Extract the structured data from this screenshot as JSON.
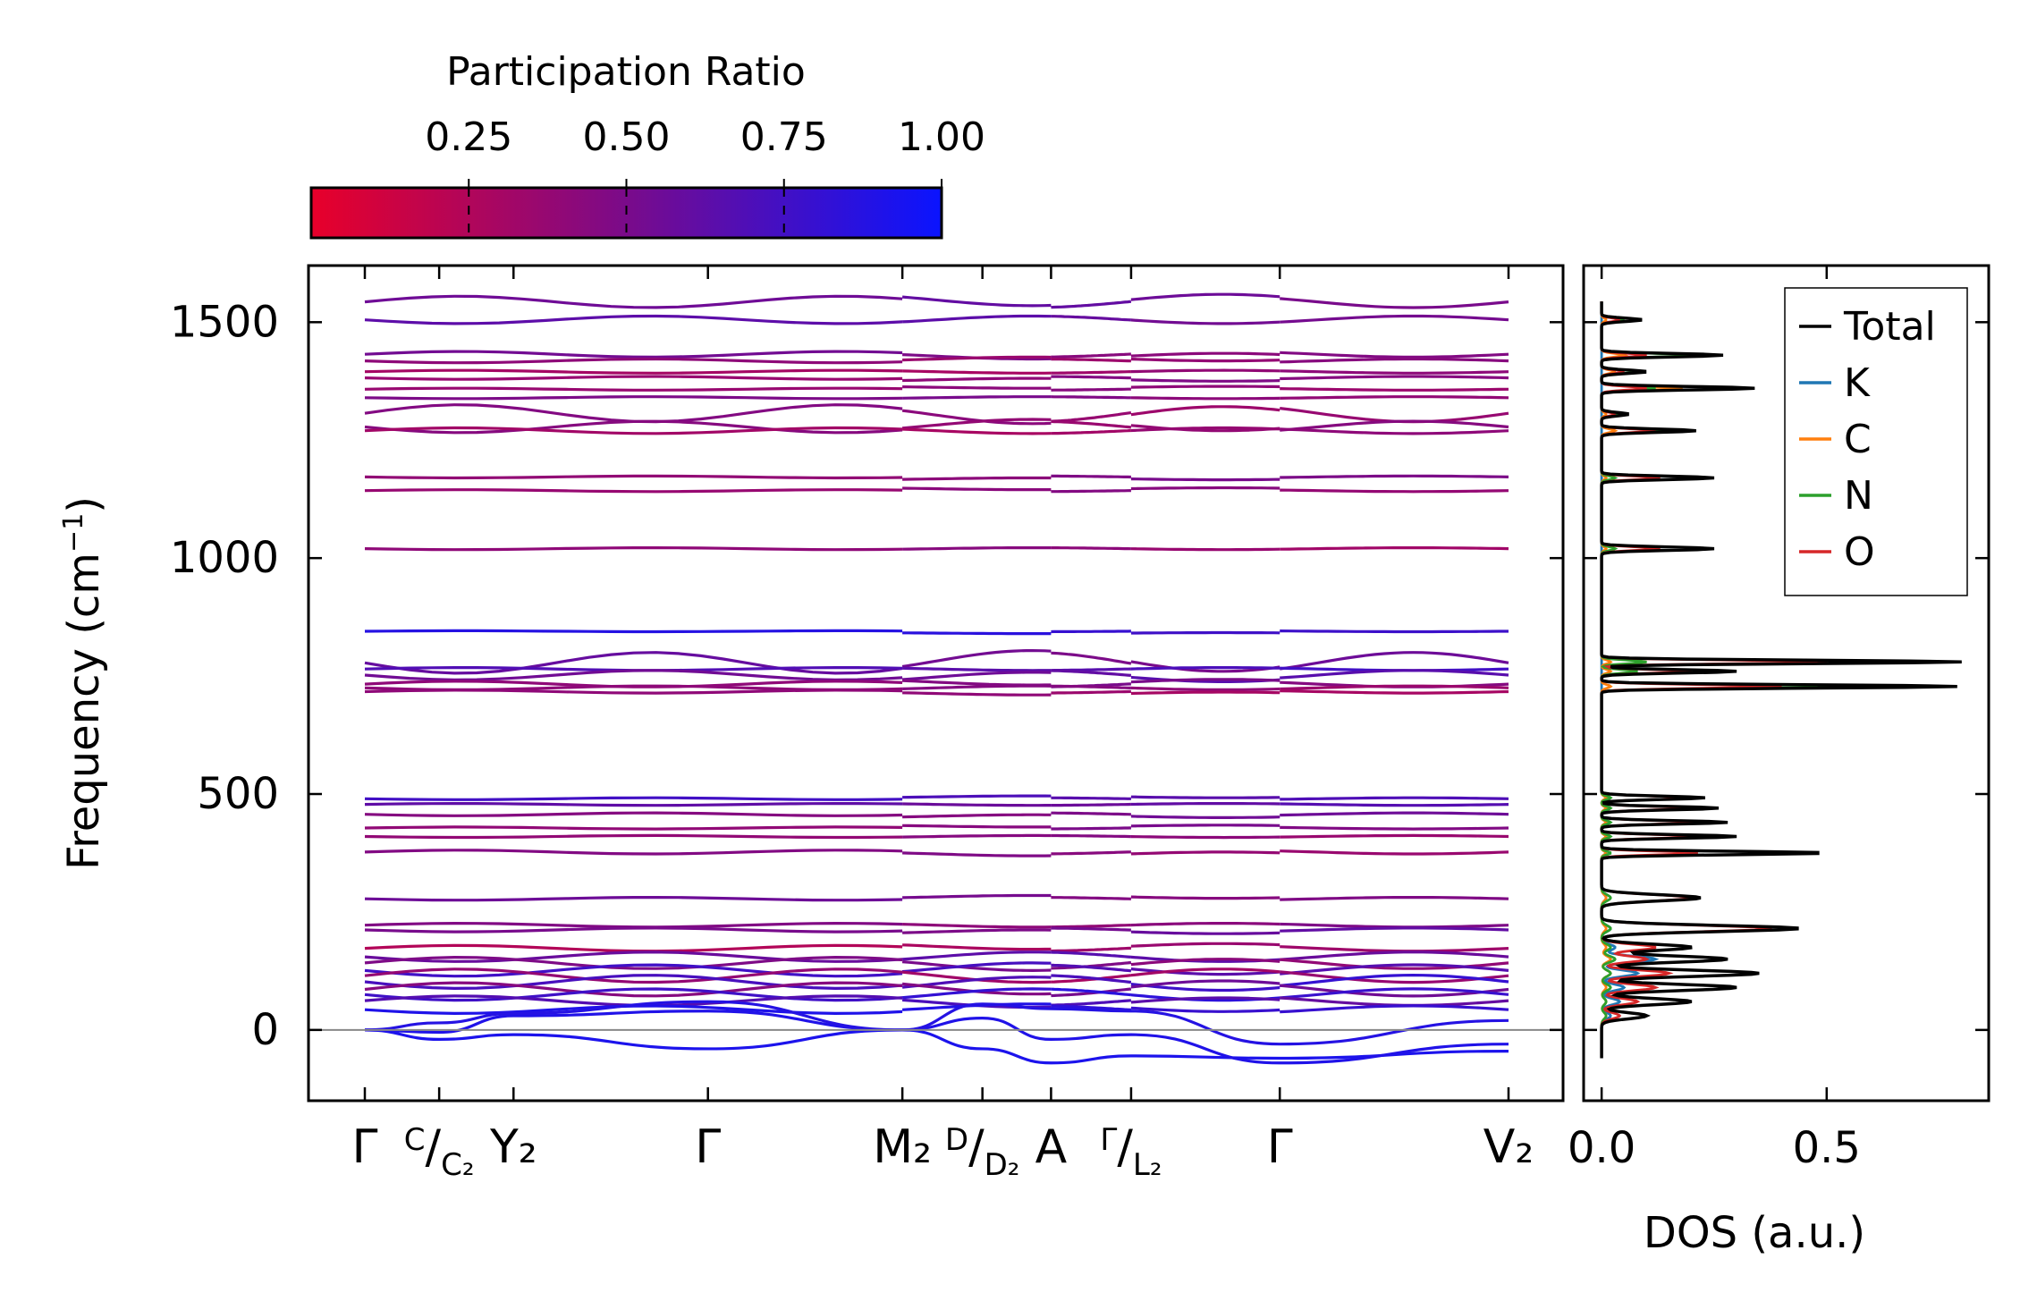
{
  "chart_data": {
    "type": "line",
    "title": "",
    "colorbar": {
      "label": "Participation Ratio",
      "ticks": [
        "0.25",
        "0.50",
        "0.75",
        "1.00"
      ],
      "tick_values": [
        0.25,
        0.5,
        0.75,
        1.0
      ],
      "range": [
        0.0,
        1.0
      ],
      "color_low": "#e8002a",
      "color_high": "#0a14ff"
    },
    "band_panel": {
      "ylabel": "Frequency (cm",
      "ylabel_sup": "−1",
      "ylabel_close": ")",
      "ylim": [
        -150,
        1620
      ],
      "yticks": [
        0,
        500,
        1000,
        1500
      ],
      "ytick_labels": [
        "0",
        "500",
        "1000",
        "1500"
      ],
      "kpoints": [
        {
          "label": "Γ",
          "pos": 0.0
        },
        {
          "label": "",
          "pos": 0.065
        },
        {
          "label": "Y₂",
          "pos": 0.13
        },
        {
          "label": "Γ",
          "pos": 0.3
        },
        {
          "label": "M₂",
          "pos": 0.47
        },
        {
          "label": "",
          "pos": 0.54
        },
        {
          "label": "A",
          "pos": 0.6
        },
        {
          "label": "",
          "pos": 0.67
        },
        {
          "label": "Γ",
          "pos": 0.8
        },
        {
          "label": "V₂",
          "pos": 1.0
        }
      ],
      "split_labels": [
        {
          "top": "C",
          "bottom": "C₂",
          "pos": 0.065
        },
        {
          "top": "D",
          "bottom": "D₂",
          "pos": 0.54
        },
        {
          "top": "Γ",
          "bottom": "L₂",
          "pos": 0.67
        }
      ],
      "segment_breaks": [
        0.47,
        0.6,
        0.67,
        0.8
      ],
      "bands": [
        {
          "freq": 1545,
          "pr": 0.55,
          "amp": 12
        },
        {
          "freq": 1505,
          "pr": 0.58,
          "amp": 8
        },
        {
          "freq": 1430,
          "pr": 0.48,
          "amp": 6
        },
        {
          "freq": 1420,
          "pr": 0.4,
          "amp": 4
        },
        {
          "freq": 1395,
          "pr": 0.35,
          "amp": 3
        },
        {
          "freq": 1380,
          "pr": 0.42,
          "amp": 3
        },
        {
          "freq": 1360,
          "pr": 0.38,
          "amp": 2
        },
        {
          "freq": 1340,
          "pr": 0.45,
          "amp": 2
        },
        {
          "freq": 1305,
          "pr": 0.4,
          "amp": 18
        },
        {
          "freq": 1280,
          "pr": 0.42,
          "amp": 12
        },
        {
          "freq": 1270,
          "pr": 0.35,
          "amp": 6
        },
        {
          "freq": 1170,
          "pr": 0.45,
          "amp": 2
        },
        {
          "freq": 1145,
          "pr": 0.4,
          "amp": 2
        },
        {
          "freq": 1020,
          "pr": 0.38,
          "amp": 2
        },
        {
          "freq": 843,
          "pr": 0.82,
          "amp": 1
        },
        {
          "freq": 780,
          "pr": 0.55,
          "amp": 22
        },
        {
          "freq": 765,
          "pr": 0.7,
          "amp": 3
        },
        {
          "freq": 750,
          "pr": 0.6,
          "amp": 10
        },
        {
          "freq": 735,
          "pr": 0.45,
          "amp": 6
        },
        {
          "freq": 725,
          "pr": 0.4,
          "amp": 4
        },
        {
          "freq": 715,
          "pr": 0.35,
          "amp": 3
        },
        {
          "freq": 492,
          "pr": 0.7,
          "amp": 2
        },
        {
          "freq": 478,
          "pr": 0.62,
          "amp": 2
        },
        {
          "freq": 455,
          "pr": 0.5,
          "amp": 3
        },
        {
          "freq": 430,
          "pr": 0.45,
          "amp": 2
        },
        {
          "freq": 410,
          "pr": 0.4,
          "amp": 2
        },
        {
          "freq": 375,
          "pr": 0.42,
          "amp": 4
        },
        {
          "freq": 280,
          "pr": 0.5,
          "amp": 3
        },
        {
          "freq": 222,
          "pr": 0.45,
          "amp": 4
        },
        {
          "freq": 210,
          "pr": 0.55,
          "amp": 4
        },
        {
          "freq": 175,
          "pr": 0.3,
          "amp": 6
        },
        {
          "freq": 155,
          "pr": 0.6,
          "amp": 10
        },
        {
          "freq": 140,
          "pr": 0.45,
          "amp": 12
        },
        {
          "freq": 128,
          "pr": 0.7,
          "amp": 12
        },
        {
          "freq": 115,
          "pr": 0.35,
          "amp": 14
        },
        {
          "freq": 100,
          "pr": 0.75,
          "amp": 14
        },
        {
          "freq": 88,
          "pr": 0.5,
          "amp": 14
        },
        {
          "freq": 75,
          "pr": 0.8,
          "amp": 12
        },
        {
          "freq": 60,
          "pr": 0.65,
          "amp": 10
        },
        {
          "freq": 45,
          "pr": 0.85,
          "amp": 8
        }
      ],
      "acoustic": [
        {
          "values": [
            0,
            -20,
            -10,
            -40,
            0,
            -40,
            -70,
            -55,
            -60,
            -45,
            0
          ],
          "pr": 0.92
        },
        {
          "values": [
            0,
            -5,
            30,
            40,
            0,
            25,
            -20,
            -10,
            -70,
            -30,
            0
          ],
          "pr": 0.9
        },
        {
          "values": [
            0,
            15,
            35,
            60,
            0,
            55,
            45,
            40,
            -30,
            20,
            0
          ],
          "pr": 0.88
        }
      ]
    },
    "dos_panel": {
      "xlabel": "DOS (a.u.)",
      "xlim": [
        -0.04,
        0.86
      ],
      "xticks": [
        0.0,
        0.5
      ],
      "xtick_labels": [
        "0.0",
        "0.5"
      ],
      "ylim": [
        -150,
        1620
      ],
      "legend": [
        {
          "name": "Total",
          "color": "#000000"
        },
        {
          "name": "K",
          "color": "#1f77b4"
        },
        {
          "name": "C",
          "color": "#ff7f0e"
        },
        {
          "name": "N",
          "color": "#2ca02c"
        },
        {
          "name": "O",
          "color": "#d62728"
        }
      ],
      "legend_position": "top-right",
      "peaks": [
        {
          "freq": 1505,
          "total": 0.09,
          "O": 0.04,
          "N": 0.05,
          "C": 0.01,
          "K": 0.0
        },
        {
          "freq": 1430,
          "total": 0.27,
          "O": 0.1,
          "N": 0.2,
          "C": 0.05,
          "K": 0.0
        },
        {
          "freq": 1395,
          "total": 0.1,
          "O": 0.05,
          "N": 0.08,
          "C": 0.03,
          "K": 0.0
        },
        {
          "freq": 1360,
          "total": 0.34,
          "O": 0.1,
          "N": 0.12,
          "C": 0.18,
          "K": 0.0
        },
        {
          "freq": 1305,
          "total": 0.06,
          "O": 0.03,
          "N": 0.04,
          "C": 0.01,
          "K": 0.0
        },
        {
          "freq": 1270,
          "total": 0.21,
          "O": 0.12,
          "N": 0.14,
          "C": 0.03,
          "K": 0.0
        },
        {
          "freq": 1170,
          "total": 0.25,
          "O": 0.13,
          "N": 0.03,
          "C": 0.01,
          "K": 0.0
        },
        {
          "freq": 1020,
          "total": 0.25,
          "O": 0.13,
          "N": 0.03,
          "C": 0.01,
          "K": 0.0
        },
        {
          "freq": 780,
          "total": 0.8,
          "O": 0.5,
          "N": 0.1,
          "C": 0.02,
          "K": 0.0
        },
        {
          "freq": 760,
          "total": 0.3,
          "O": 0.2,
          "N": 0.08,
          "C": 0.02,
          "K": 0.0
        },
        {
          "freq": 728,
          "total": 0.79,
          "O": 0.4,
          "N": 0.53,
          "C": 0.02,
          "K": 0.0
        },
        {
          "freq": 492,
          "total": 0.23,
          "O": 0.2,
          "N": 0.02,
          "C": 0.01,
          "K": 0.01
        },
        {
          "freq": 470,
          "total": 0.26,
          "O": 0.2,
          "N": 0.02,
          "C": 0.01,
          "K": 0.01
        },
        {
          "freq": 440,
          "total": 0.28,
          "O": 0.22,
          "N": 0.02,
          "C": 0.01,
          "K": 0.01
        },
        {
          "freq": 410,
          "total": 0.3,
          "O": 0.22,
          "N": 0.02,
          "C": 0.01,
          "K": 0.01
        },
        {
          "freq": 375,
          "total": 0.5,
          "O": 0.22,
          "N": 0.02,
          "C": 0.01,
          "K": 0.01
        },
        {
          "freq": 280,
          "total": 0.22,
          "O": 0.2,
          "N": 0.02,
          "C": 0.01,
          "K": 0.01
        },
        {
          "freq": 215,
          "total": 0.44,
          "O": 0.38,
          "N": 0.02,
          "C": 0.01,
          "K": 0.02
        },
        {
          "freq": 175,
          "total": 0.2,
          "O": 0.12,
          "N": 0.02,
          "C": 0.01,
          "K": 0.03
        },
        {
          "freq": 150,
          "total": 0.28,
          "O": 0.1,
          "N": 0.03,
          "C": 0.02,
          "K": 0.12
        },
        {
          "freq": 120,
          "total": 0.35,
          "O": 0.15,
          "N": 0.02,
          "C": 0.02,
          "K": 0.08
        },
        {
          "freq": 90,
          "total": 0.3,
          "O": 0.12,
          "N": 0.02,
          "C": 0.01,
          "K": 0.05
        },
        {
          "freq": 60,
          "total": 0.2,
          "O": 0.08,
          "N": 0.01,
          "C": 0.01,
          "K": 0.04
        },
        {
          "freq": 30,
          "total": 0.1,
          "O": 0.04,
          "N": 0.01,
          "C": 0.01,
          "K": 0.02
        }
      ]
    }
  }
}
